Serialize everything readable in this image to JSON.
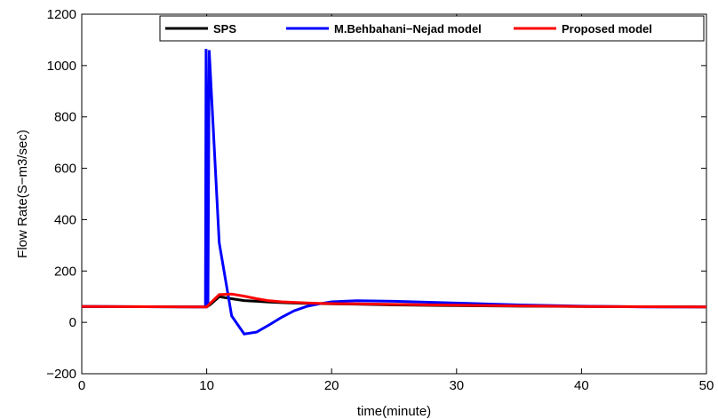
{
  "chart_data": {
    "type": "line",
    "xlabel": "time(minute)",
    "ylabel": "Flow Rate(S−m3/sec)",
    "xlim": [
      0,
      50
    ],
    "ylim": [
      -200,
      1200
    ],
    "xticks": [
      0,
      10,
      20,
      30,
      40,
      50
    ],
    "yticks": [
      -200,
      0,
      200,
      400,
      600,
      800,
      1000,
      1200
    ],
    "xtick_labels": [
      "0",
      "10",
      "20",
      "30",
      "40",
      "50"
    ],
    "ytick_labels": [
      "−200",
      "0",
      "200",
      "400",
      "600",
      "800",
      "1000",
      "1200"
    ],
    "grid": false,
    "legend_position": "top-right",
    "series": [
      {
        "name": "SPS",
        "color": "#000000",
        "x": [
          0,
          9.9,
          10.0,
          10.3,
          11,
          12,
          13,
          14,
          15,
          16,
          17,
          18,
          19,
          20,
          22,
          25,
          30,
          35,
          40,
          45,
          50
        ],
        "y": [
          62,
          60,
          60,
          70,
          100,
          92,
          85,
          82,
          79,
          77,
          75,
          74,
          73,
          72,
          71,
          68,
          65,
          63,
          62,
          61,
          60
        ]
      },
      {
        "name": "M.Behbahani−Nejad model",
        "color": "#0000ff",
        "x": [
          0,
          9.9,
          9.95,
          10.1,
          10.2,
          11,
          12,
          13,
          14,
          15,
          16,
          17,
          18,
          19,
          20,
          22,
          25,
          30,
          35,
          40,
          45,
          50
        ],
        "y": [
          62,
          60,
          1065,
          60,
          1060,
          310,
          25,
          -45,
          -38,
          -10,
          20,
          45,
          62,
          72,
          80,
          84,
          82,
          75,
          68,
          63,
          60,
          60
        ]
      },
      {
        "name": "Proposed model",
        "color": "#ff0000",
        "x": [
          0,
          9.9,
          10.0,
          10.3,
          11,
          12,
          13,
          14,
          15,
          16,
          17,
          18,
          19,
          20,
          22,
          25,
          30,
          35,
          40,
          45,
          50
        ],
        "y": [
          62,
          60,
          60,
          75,
          108,
          110,
          102,
          92,
          84,
          80,
          78,
          76,
          74,
          73,
          72,
          70,
          67,
          64,
          62,
          61,
          60
        ]
      }
    ]
  }
}
